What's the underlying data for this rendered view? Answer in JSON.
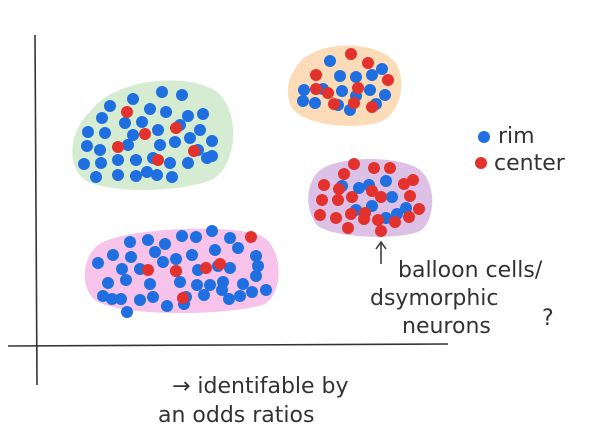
{
  "colors": {
    "rim": "#1f6fe0",
    "center": "#e3322d",
    "cluster_green": "#d6ecd2",
    "cluster_orange": "#fcdcb8",
    "cluster_purple": "#dcc0e6",
    "cluster_pink": "#f7c3ea"
  },
  "legend": {
    "rim_label": "rim",
    "center_label": "center"
  },
  "annotation": {
    "line1": "balloon cells/",
    "line2": "dsymorphic",
    "line3": "neurons",
    "question_mark": "?"
  },
  "footer": {
    "line1": "→ identifable by",
    "line2": "an odds ratios"
  },
  "clusters": [
    {
      "id": "green",
      "rim_count": 40,
      "center_count": 6
    },
    {
      "id": "orange",
      "rim_count": 16,
      "center_count": 10
    },
    {
      "id": "purple",
      "rim_count": 10,
      "center_count": 25
    },
    {
      "id": "pink",
      "rim_count": 48,
      "center_count": 6
    }
  ]
}
